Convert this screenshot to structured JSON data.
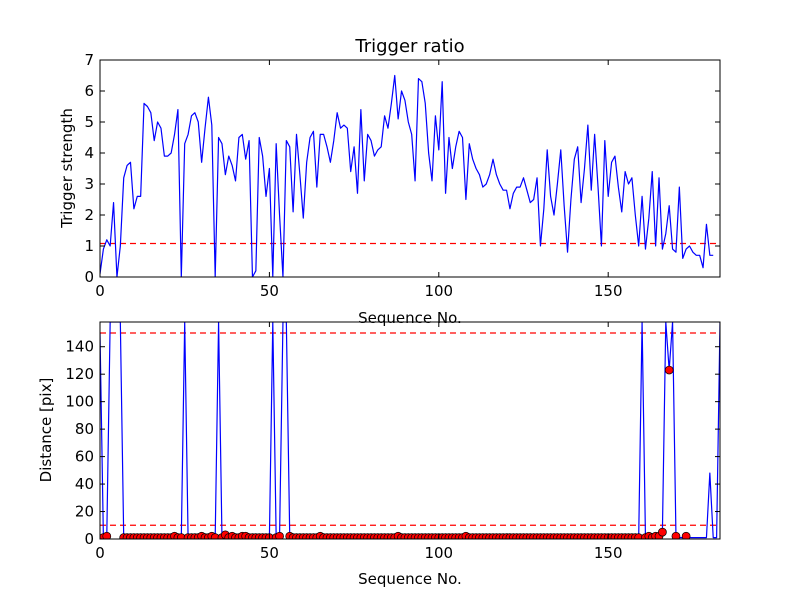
{
  "chart_data": [
    {
      "type": "line",
      "title": "Trigger ratio",
      "xlabel": "Sequence No.",
      "ylabel": "Trigger strength",
      "xlim": [
        0,
        183
      ],
      "ylim": [
        0,
        7
      ],
      "x_ticks": [
        "0",
        "50",
        "100",
        "150"
      ],
      "y_ticks": [
        "0",
        "1",
        "2",
        "3",
        "4",
        "5",
        "6",
        "7"
      ],
      "threshold": 1.08,
      "colors": {
        "line": "#0000ff",
        "threshold": "#ff0000"
      },
      "grid": false,
      "series": [
        {
          "values": [
            0.1,
            0.9,
            1.2,
            1.0,
            2.4,
            0.0,
            1.0,
            3.2,
            3.6,
            3.7,
            2.2,
            2.6,
            2.6,
            5.6,
            5.5,
            5.3,
            4.4,
            5.0,
            4.8,
            3.9,
            3.9,
            4.0,
            4.6,
            5.4,
            0.0,
            4.3,
            4.6,
            5.2,
            5.3,
            5.0,
            3.7,
            4.8,
            5.8,
            4.9,
            0.0,
            4.5,
            4.3,
            3.3,
            3.9,
            3.6,
            3.1,
            4.5,
            4.6,
            3.8,
            4.4,
            0.0,
            0.2,
            4.5,
            3.9,
            2.6,
            3.5,
            0.0,
            4.3,
            2.0,
            0.0,
            4.4,
            4.2,
            2.1,
            4.6,
            3.3,
            1.9,
            3.7,
            4.5,
            4.7,
            2.9,
            4.6,
            4.6,
            4.2,
            3.7,
            4.4,
            5.3,
            4.8,
            4.9,
            4.8,
            3.4,
            4.2,
            2.7,
            5.4,
            3.1,
            4.6,
            4.4,
            3.9,
            4.1,
            4.2,
            5.2,
            4.8,
            5.6,
            6.5,
            5.1,
            6.0,
            5.7,
            5.0,
            4.6,
            3.1,
            6.4,
            6.3,
            5.6,
            4.0,
            3.1,
            5.2,
            4.1,
            6.3,
            2.7,
            4.5,
            3.5,
            4.2,
            4.7,
            4.5,
            2.5,
            4.3,
            3.8,
            3.5,
            3.3,
            2.9,
            3.0,
            3.3,
            3.8,
            3.3,
            3.0,
            2.8,
            2.8,
            2.2,
            2.7,
            2.9,
            2.9,
            3.2,
            2.8,
            2.4,
            2.5,
            3.2,
            1.0,
            2.2,
            4.1,
            2.6,
            2.0,
            3.0,
            4.1,
            2.3,
            0.8,
            2.5,
            3.8,
            4.2,
            2.4,
            3.5,
            4.9,
            2.8,
            4.6,
            2.9,
            1.0,
            4.4,
            2.6,
            3.7,
            3.9,
            2.9,
            2.1,
            3.4,
            3.0,
            3.2,
            2.0,
            1.0,
            2.6,
            0.9,
            1.9,
            3.4,
            1.0,
            3.2,
            0.9,
            1.4,
            2.3,
            0.9,
            0.8,
            2.9,
            0.6,
            0.9,
            1.0,
            0.8,
            0.7,
            0.7,
            0.3,
            1.7,
            0.7,
            0.7
          ]
        }
      ]
    },
    {
      "type": "line",
      "title": "",
      "xlabel": "Sequence No.",
      "ylabel": "Distance [pix]",
      "xlim": [
        0,
        183
      ],
      "ylim": [
        0,
        158
      ],
      "x_ticks": [
        "0",
        "50",
        "100",
        "150"
      ],
      "y_ticks": [
        "0",
        "20",
        "40",
        "60",
        "80",
        "100",
        "120",
        "140"
      ],
      "thresholds": [
        10,
        150
      ],
      "colors": {
        "line": "#0000ff",
        "marker": "#ff0000",
        "threshold": "#ff0000"
      },
      "grid": false,
      "series": [
        {
          "values": [
            150,
            1,
            2,
            158,
            158,
            158,
            158,
            1,
            1,
            1,
            1,
            1,
            1,
            1,
            1,
            1,
            1,
            1,
            1,
            1,
            1,
            1,
            2,
            1,
            1,
            158,
            1,
            1,
            1,
            1,
            2,
            1,
            1,
            2,
            1,
            158,
            1,
            3,
            1,
            2,
            1,
            1,
            2,
            2,
            1,
            1,
            1,
            1,
            1,
            1,
            1,
            158,
            1,
            2,
            158,
            158,
            2,
            1,
            1,
            1,
            1,
            1,
            1,
            1,
            1,
            2,
            1,
            1,
            1,
            1,
            1,
            1,
            1,
            1,
            1,
            1,
            1,
            1,
            1,
            1,
            1,
            1,
            1,
            1,
            1,
            1,
            1,
            1,
            2,
            1,
            1,
            1,
            1,
            1,
            1,
            1,
            1,
            1,
            1,
            1,
            1,
            1,
            1,
            1,
            1,
            1,
            1,
            1,
            2,
            1,
            1,
            1,
            1,
            1,
            1,
            1,
            1,
            1,
            1,
            1,
            1,
            1,
            1,
            1,
            1,
            1,
            1,
            1,
            1,
            1,
            1,
            1,
            1,
            1,
            1,
            1,
            1,
            1,
            1,
            1,
            1,
            1,
            1,
            1,
            1,
            1,
            1,
            1,
            1,
            1,
            1,
            1,
            1,
            1,
            1,
            1,
            1,
            1,
            1,
            1,
            158,
            1,
            2,
            1,
            2,
            2,
            5,
            158,
            123,
            158,
            2,
            1,
            1,
            2,
            1,
            1,
            1,
            1,
            1,
            1,
            48,
            1,
            1,
            158
          ],
          "marker_values": [
            null,
            1,
            2,
            null,
            null,
            null,
            null,
            1,
            1,
            1,
            1,
            1,
            1,
            1,
            1,
            1,
            1,
            1,
            1,
            1,
            1,
            1,
            2,
            1,
            1,
            null,
            1,
            1,
            1,
            1,
            2,
            1,
            1,
            2,
            1,
            null,
            1,
            3,
            1,
            2,
            1,
            1,
            2,
            2,
            1,
            1,
            1,
            1,
            1,
            1,
            1,
            null,
            1,
            2,
            null,
            null,
            2,
            1,
            1,
            1,
            1,
            1,
            1,
            1,
            1,
            2,
            1,
            1,
            1,
            1,
            1,
            1,
            1,
            1,
            1,
            1,
            1,
            1,
            1,
            1,
            1,
            1,
            1,
            1,
            1,
            1,
            1,
            1,
            2,
            1,
            1,
            1,
            1,
            1,
            1,
            1,
            1,
            1,
            1,
            1,
            1,
            1,
            1,
            1,
            1,
            1,
            1,
            1,
            2,
            1,
            1,
            1,
            1,
            1,
            1,
            1,
            1,
            1,
            1,
            1,
            1,
            1,
            1,
            1,
            1,
            1,
            1,
            1,
            1,
            1,
            1,
            1,
            1,
            1,
            1,
            1,
            1,
            1,
            1,
            1,
            1,
            1,
            1,
            1,
            1,
            1,
            1,
            1,
            1,
            1,
            1,
            1,
            1,
            1,
            1,
            1,
            1,
            1,
            1,
            1,
            null,
            1,
            2,
            1,
            2,
            2,
            5,
            null,
            123,
            null,
            2,
            null,
            null,
            2,
            null,
            null,
            null,
            null,
            null,
            null,
            null,
            null,
            null,
            null
          ]
        }
      ]
    }
  ]
}
